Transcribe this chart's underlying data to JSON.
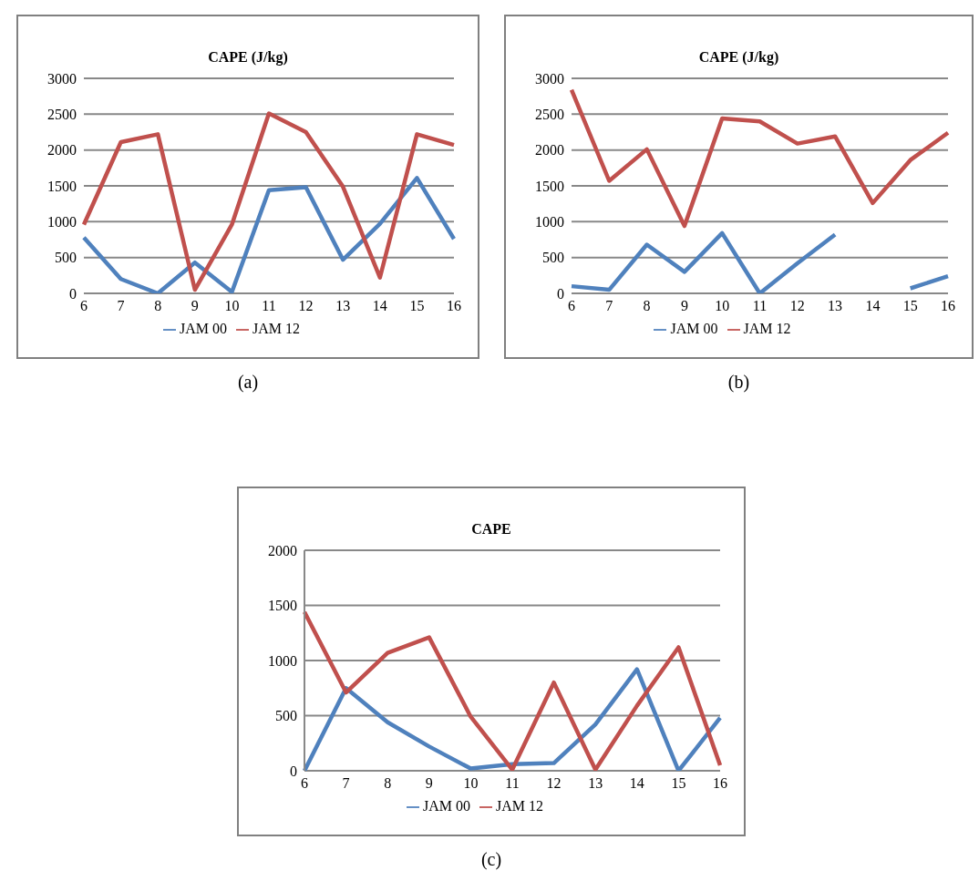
{
  "chart_data": [
    {
      "type": "line",
      "title": "CAPE (J/kg)",
      "categories": [
        "6",
        "7",
        "8",
        "9",
        "10",
        "11",
        "12",
        "13",
        "14",
        "15",
        "16"
      ],
      "ylim": [
        0,
        3000
      ],
      "yticks": [
        0,
        500,
        1000,
        1500,
        2000,
        2500,
        3000
      ],
      "grid": "y",
      "legend": "bottom",
      "marker": "none",
      "annotations": [
        "(a)"
      ],
      "series": [
        {
          "name": "JAM 00",
          "color": "#4f81bd",
          "values": [
            780,
            200,
            0,
            430,
            20,
            1440,
            1480,
            470,
            970,
            1610,
            760
          ]
        },
        {
          "name": "JAM 12",
          "color": "#c0504d",
          "values": [
            960,
            2110,
            2220,
            50,
            960,
            2510,
            2250,
            1490,
            220,
            2220,
            2070
          ]
        }
      ]
    },
    {
      "type": "line",
      "title": "CAPE (J/kg)",
      "categories": [
        "6",
        "7",
        "8",
        "9",
        "10",
        "11",
        "12",
        "13",
        "14",
        "15",
        "16"
      ],
      "ylim": [
        0,
        3000
      ],
      "yticks": [
        0,
        500,
        1000,
        1500,
        2000,
        2500,
        3000
      ],
      "grid": "y",
      "legend": "bottom",
      "marker": "none",
      "annotations": [
        "(b)"
      ],
      "series": [
        {
          "name": "JAM 00",
          "color": "#4f81bd",
          "values": [
            100,
            50,
            680,
            300,
            840,
            0,
            420,
            820,
            null,
            70,
            240
          ]
        },
        {
          "name": "JAM 12",
          "color": "#c0504d",
          "values": [
            2840,
            1570,
            2010,
            940,
            2440,
            2400,
            2090,
            2190,
            1260,
            1860,
            2240
          ]
        }
      ]
    },
    {
      "type": "line",
      "title": "CAPE",
      "categories": [
        "6",
        "7",
        "8",
        "9",
        "10",
        "11",
        "12",
        "13",
        "14",
        "15",
        "16"
      ],
      "ylim": [
        0,
        2000
      ],
      "yticks": [
        0,
        500,
        1000,
        1500,
        2000
      ],
      "grid": "y",
      "legend": "bottom",
      "marker": "none",
      "annotations": [
        "(c)"
      ],
      "series": [
        {
          "name": "JAM 00",
          "color": "#4f81bd",
          "values": [
            0,
            750,
            440,
            220,
            20,
            60,
            70,
            420,
            920,
            0,
            480
          ]
        },
        {
          "name": "JAM 12",
          "color": "#c0504d",
          "values": [
            1440,
            710,
            1070,
            1210,
            490,
            10,
            800,
            10,
            590,
            1120,
            50
          ]
        }
      ]
    }
  ]
}
